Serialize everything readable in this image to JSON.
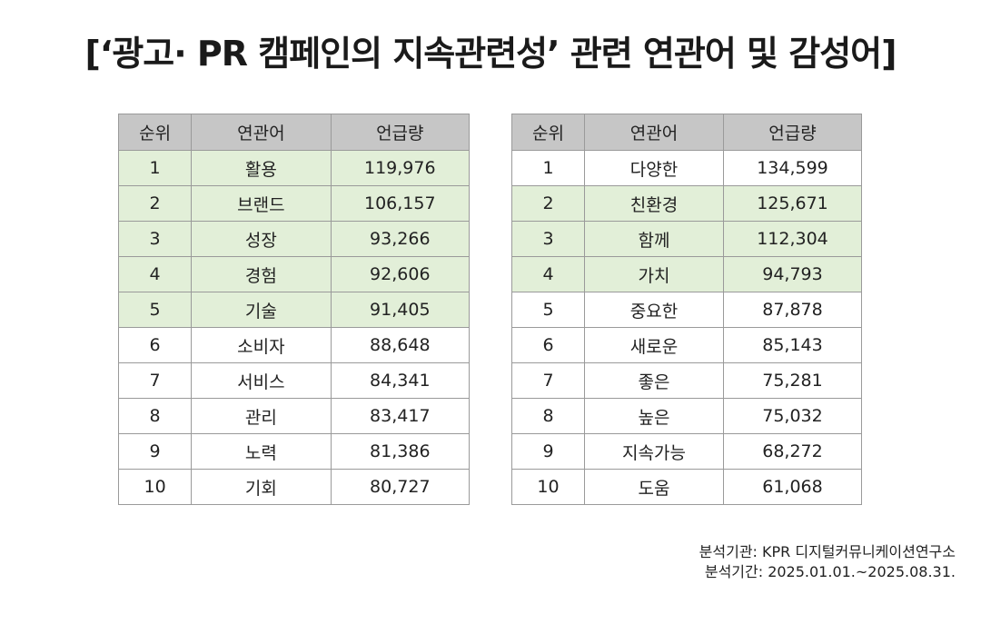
{
  "title": "[‘광고· PR 캠페인의 지속관련성’ 관련 연관어 및 감성어]",
  "headers": {
    "rank": "순위",
    "keyword": "연관어",
    "mentions": "언급량"
  },
  "highlight_color": "#e2efd8",
  "header_color": "#c6c6c6",
  "left_table": [
    {
      "rank": "1",
      "keyword": "활용",
      "mentions": "119,976",
      "highlighted": true
    },
    {
      "rank": "2",
      "keyword": "브랜드",
      "mentions": "106,157",
      "highlighted": true
    },
    {
      "rank": "3",
      "keyword": "성장",
      "mentions": "93,266",
      "highlighted": true
    },
    {
      "rank": "4",
      "keyword": "경험",
      "mentions": "92,606",
      "highlighted": true
    },
    {
      "rank": "5",
      "keyword": "기술",
      "mentions": "91,405",
      "highlighted": true
    },
    {
      "rank": "6",
      "keyword": "소비자",
      "mentions": "88,648",
      "highlighted": false
    },
    {
      "rank": "7",
      "keyword": "서비스",
      "mentions": "84,341",
      "highlighted": false
    },
    {
      "rank": "8",
      "keyword": "관리",
      "mentions": "83,417",
      "highlighted": false
    },
    {
      "rank": "9",
      "keyword": "노력",
      "mentions": "81,386",
      "highlighted": false
    },
    {
      "rank": "10",
      "keyword": "기회",
      "mentions": "80,727",
      "highlighted": false
    }
  ],
  "right_table": [
    {
      "rank": "1",
      "keyword": "다양한",
      "mentions": "134,599",
      "highlighted": false
    },
    {
      "rank": "2",
      "keyword": "친환경",
      "mentions": "125,671",
      "highlighted": true
    },
    {
      "rank": "3",
      "keyword": "함께",
      "mentions": "112,304",
      "highlighted": true
    },
    {
      "rank": "4",
      "keyword": "가치",
      "mentions": "94,793",
      "highlighted": true
    },
    {
      "rank": "5",
      "keyword": "중요한",
      "mentions": "87,878",
      "highlighted": false
    },
    {
      "rank": "6",
      "keyword": "새로운",
      "mentions": "85,143",
      "highlighted": false
    },
    {
      "rank": "7",
      "keyword": "좋은",
      "mentions": "75,281",
      "highlighted": false
    },
    {
      "rank": "8",
      "keyword": "높은",
      "mentions": "75,032",
      "highlighted": false
    },
    {
      "rank": "9",
      "keyword": "지속가능",
      "mentions": "68,272",
      "highlighted": false
    },
    {
      "rank": "10",
      "keyword": "도움",
      "mentions": "61,068",
      "highlighted": false
    }
  ],
  "footer": {
    "institution": "분석기관: KPR 디지털커뮤니케이션연구소",
    "period": "분석기간: 2025.01.01.~2025.08.31."
  }
}
